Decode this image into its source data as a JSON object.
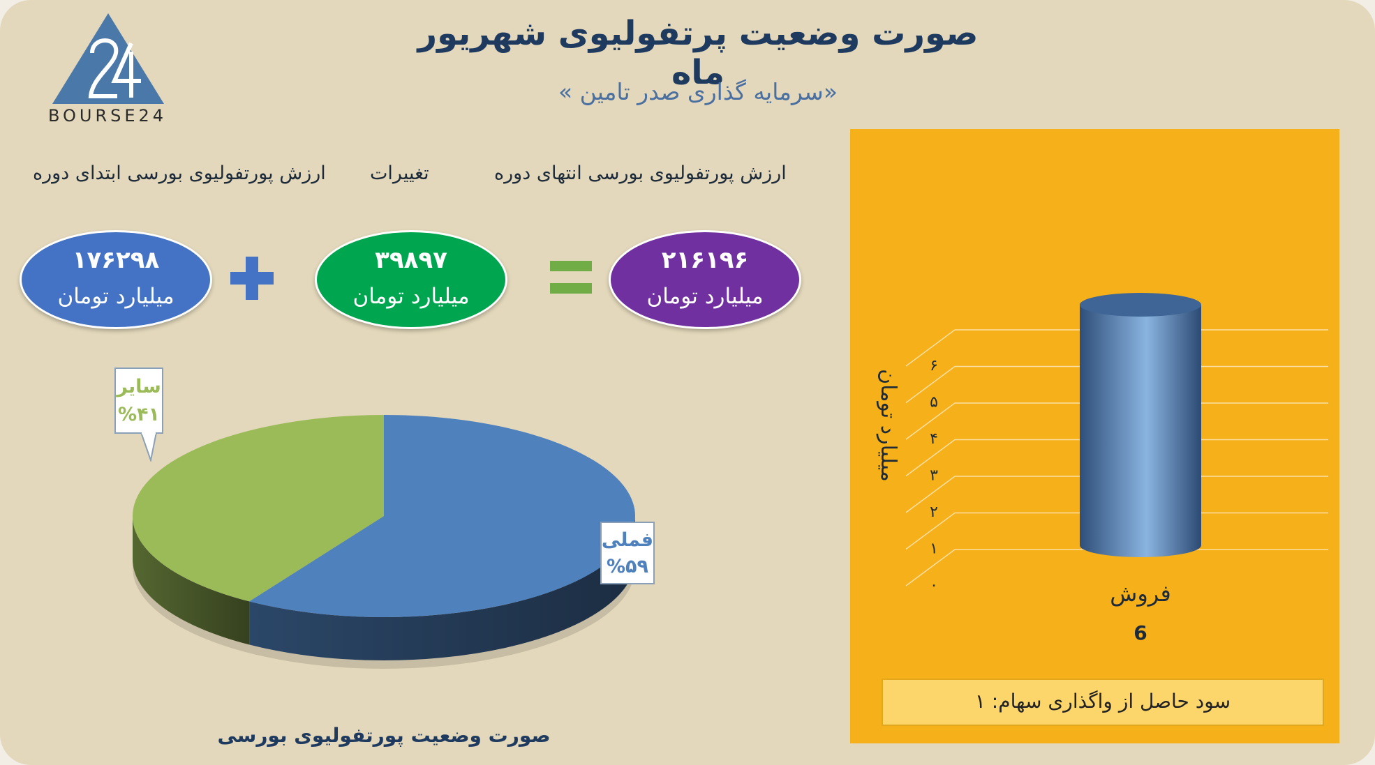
{
  "header": {
    "title": "صورت وضعیت پرتفولیوی شهریور ماه",
    "subtitle": "«سرمایه گذاری صدر تامین »",
    "logo_text": "BOURSE24"
  },
  "summary": {
    "start_label": "ارزش پورتفولیوی بورسی ابتدای دوره",
    "change_label": "تغییرات",
    "end_label": "ارزش پورتفولیوی بورسی انتهای دوره",
    "start_value": "۱۷۶۲۹۸",
    "change_value": "۳۹۸۹۷",
    "end_value": "۲۱۶۱۹۶",
    "unit": "میلیارد تومان",
    "colors": {
      "start": "#4472c4",
      "change": "#00a550",
      "end": "#7030a0",
      "operator": "#4472c4",
      "equals": "#70ad47"
    }
  },
  "chart_data": [
    {
      "type": "pie",
      "title": "صورت وضعیت پورتفولیوی بورسی",
      "slices": [
        {
          "label": "فملی",
          "value": 59,
          "value_label": "%۵۹",
          "color": "#4f81bd"
        },
        {
          "label": "سایر",
          "value": 41,
          "value_label": "%۴۱",
          "color": "#9bbb59"
        }
      ]
    },
    {
      "type": "bar",
      "categories": [
        "فروش"
      ],
      "values": [
        6
      ],
      "data_labels": [
        "6"
      ],
      "ylabel": "میلیارد تومان",
      "ylim": [
        0,
        6
      ],
      "yticks": [
        "۰",
        "۱",
        "۲",
        "۳",
        "۴",
        "۵",
        "۶"
      ],
      "grid": true,
      "background": "#f6b019",
      "bar_color": "#4f81bd"
    }
  ],
  "profit_note": "سود حاصل از واگذاری سهام: ۱"
}
